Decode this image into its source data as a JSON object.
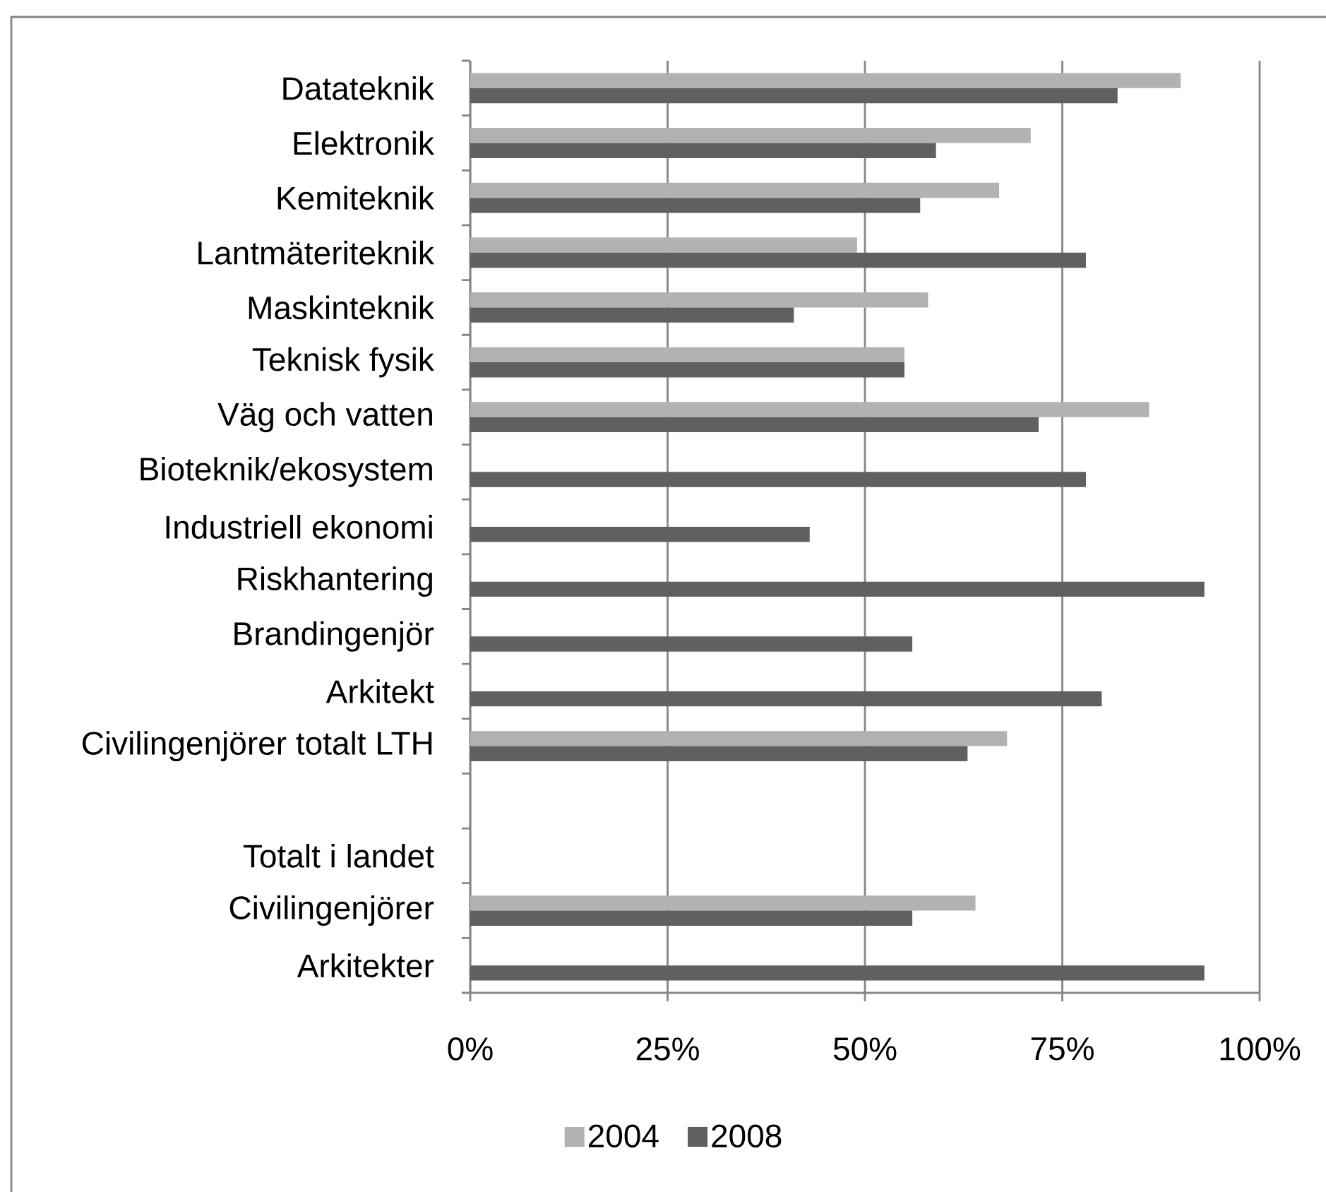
{
  "chart_data": {
    "type": "bar",
    "orientation": "horizontal",
    "categories": [
      "Datateknik",
      "Elektronik",
      "Kemiteknik",
      "Lantmäteriteknik",
      "Maskinteknik",
      "Teknisk fysik",
      "Väg och vatten",
      "Bioteknik/ekosystem",
      "Industriell ekonomi",
      "Riskhantering",
      "Brandingenjör",
      "Arkitekt",
      "Civilingenjörer totalt LTH",
      null,
      "Totalt i landet",
      "Civilingenjörer",
      "Arkitekter"
    ],
    "series": [
      {
        "name": "2004",
        "color": "#b2b2b2",
        "values": [
          90,
          71,
          67,
          49,
          58,
          55,
          86,
          null,
          null,
          null,
          null,
          null,
          68,
          null,
          null,
          64,
          null
        ]
      },
      {
        "name": "2008",
        "color": "#606060",
        "values": [
          82,
          59,
          57,
          78,
          41,
          55,
          72,
          78,
          43,
          93,
          56,
          80,
          63,
          null,
          null,
          56,
          93
        ]
      }
    ],
    "xlim": [
      0,
      100
    ],
    "xticks": [
      {
        "value": 0,
        "label": "0%"
      },
      {
        "value": 25,
        "label": "25%"
      },
      {
        "value": 50,
        "label": "50%"
      },
      {
        "value": 75,
        "label": "75%"
      },
      {
        "value": 100,
        "label": "100%"
      }
    ],
    "grid": "x",
    "legend": "bottom"
  }
}
